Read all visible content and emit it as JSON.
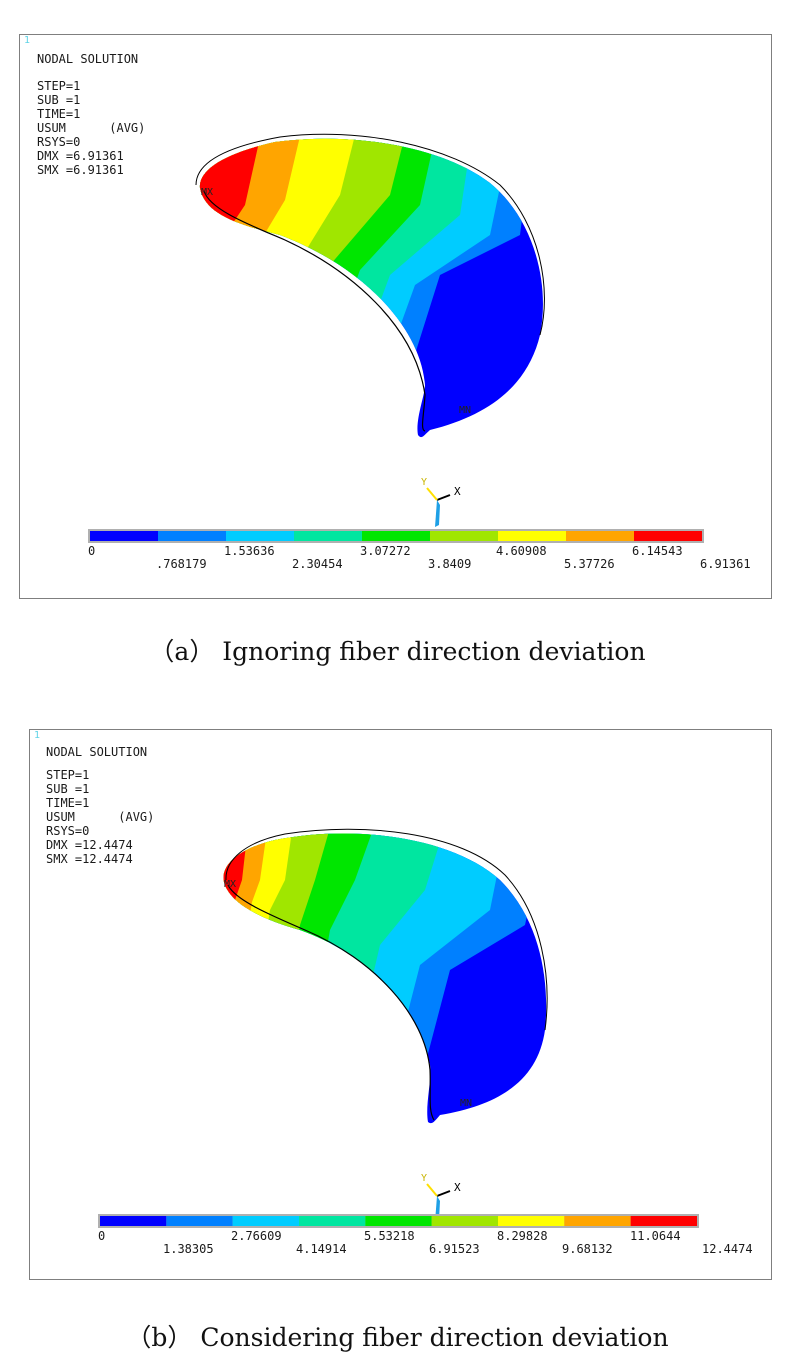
{
  "panel_a": {
    "corner_number": "1",
    "title": "NODAL SOLUTION",
    "info": [
      "STEP=1",
      "SUB =1",
      "TIME=1",
      "USUM      (AVG)",
      "RSYS=0",
      "DMX =6.91361",
      "SMX =6.91361"
    ],
    "labels": {
      "max": "MX",
      "min": "MN",
      "axis_x": "X",
      "axis_y": "Y"
    },
    "legend_colors": [
      "#0000ff",
      "#0080ff",
      "#00ccff",
      "#00e6a0",
      "#00e600",
      "#a0e600",
      "#ffff00",
      "#ffa500",
      "#ff0000"
    ],
    "scale_top": [
      "0",
      "1.53636",
      "3.07272",
      "4.60908",
      "6.14543"
    ],
    "scale_bottom": [
      ".768179",
      "2.30454",
      "3.8409",
      "5.37726",
      "6.91361"
    ],
    "caption": "（a）  Ignoring fiber direction deviation"
  },
  "panel_b": {
    "corner_number": "1",
    "title": "NODAL SOLUTION",
    "info": [
      "STEP=1",
      "SUB =1",
      "TIME=1",
      "USUM      (AVG)",
      "RSYS=0",
      "DMX =12.4474",
      "SMX =12.4474"
    ],
    "labels": {
      "max": "MX",
      "min": "MN",
      "axis_x": "X",
      "axis_y": "Y"
    },
    "legend_colors": [
      "#0000ff",
      "#0080ff",
      "#00ccff",
      "#00e6a0",
      "#00e600",
      "#a0e600",
      "#ffff00",
      "#ffa500",
      "#ff0000"
    ],
    "scale_top": [
      "0",
      "2.76609",
      "5.53218",
      "8.29828",
      "11.0644"
    ],
    "scale_bottom": [
      "1.38305",
      "4.14914",
      "6.91523",
      "9.68132",
      "12.4474"
    ],
    "caption": "（b）  Considering fiber direction deviation"
  }
}
